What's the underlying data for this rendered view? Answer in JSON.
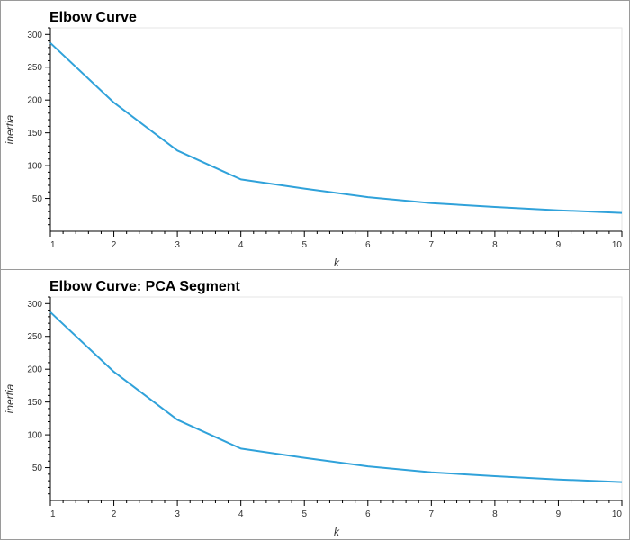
{
  "colors": {
    "series": "#30a2da"
  },
  "chart_data": [
    {
      "type": "line",
      "title": "Elbow Curve",
      "xlabel": "k",
      "ylabel": "inertia",
      "xlim": [
        1,
        10
      ],
      "ylim": [
        0,
        310
      ],
      "x": [
        1,
        2,
        3,
        4,
        5,
        6,
        7,
        8,
        9,
        10
      ],
      "xticks": [
        1,
        2,
        3,
        4,
        5,
        6,
        7,
        8,
        9,
        10
      ],
      "yticks": [
        50,
        100,
        150,
        200,
        250,
        300
      ],
      "grid": false,
      "series": [
        {
          "values": [
            287,
            196,
            123,
            79,
            65,
            52,
            43,
            37,
            32,
            28
          ]
        }
      ]
    },
    {
      "type": "line",
      "title": "Elbow Curve: PCA Segment",
      "xlabel": "k",
      "ylabel": "inertia",
      "xlim": [
        1,
        10
      ],
      "ylim": [
        0,
        310
      ],
      "x": [
        1,
        2,
        3,
        4,
        5,
        6,
        7,
        8,
        9,
        10
      ],
      "xticks": [
        1,
        2,
        3,
        4,
        5,
        6,
        7,
        8,
        9,
        10
      ],
      "yticks": [
        50,
        100,
        150,
        200,
        250,
        300
      ],
      "grid": false,
      "series": [
        {
          "values": [
            287,
            196,
            123,
            79,
            65,
            52,
            43,
            37,
            32,
            28
          ]
        }
      ]
    }
  ]
}
